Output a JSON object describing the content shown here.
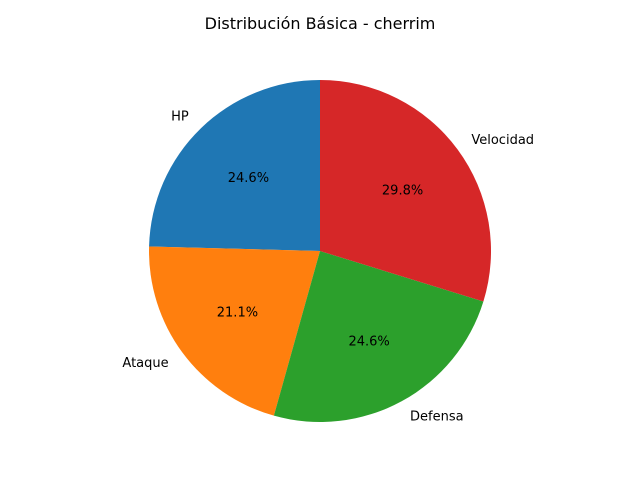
{
  "chart_data": {
    "type": "pie",
    "title": "Distribución Básica - cherrim",
    "start_angle_deg": 90,
    "direction": "counterclockwise",
    "slices": [
      {
        "label": "HP",
        "value": 24.6,
        "pct_text": "24.6%",
        "color": "#1f77b4"
      },
      {
        "label": "Ataque",
        "value": 21.1,
        "pct_text": "21.1%",
        "color": "#ff7f0e"
      },
      {
        "label": "Defensa",
        "value": 24.6,
        "pct_text": "24.6%",
        "color": "#2ca02c"
      },
      {
        "label": "Velocidad",
        "value": 29.8,
        "pct_text": "29.8%",
        "color": "#d62728"
      }
    ]
  }
}
